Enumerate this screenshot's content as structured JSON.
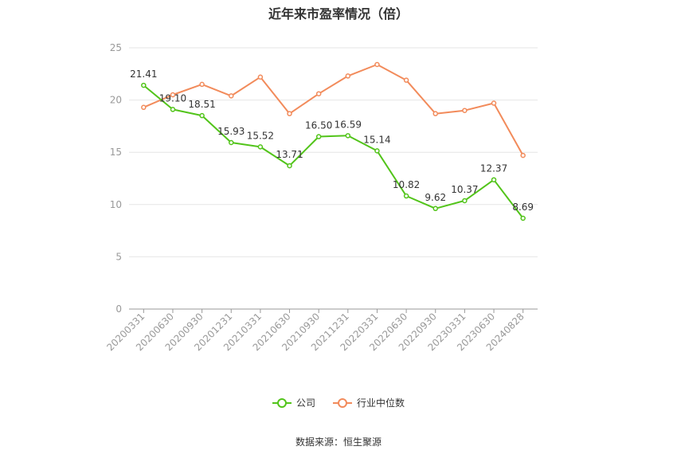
{
  "title": "近年来市盈率情况（倍）",
  "source": "数据来源：恒生聚源",
  "chart_data": {
    "type": "line",
    "categories": [
      "20200331",
      "20200630",
      "20200930",
      "20201231",
      "20210331",
      "20210630",
      "20210930",
      "20211231",
      "20220331",
      "20220630",
      "20220930",
      "20230331",
      "20230630",
      "20240828"
    ],
    "ylim": [
      0,
      25
    ],
    "yticks": [
      0,
      5,
      10,
      15,
      20,
      25
    ],
    "grid": true,
    "legend_position": "bottom",
    "series": [
      {
        "name": "公司",
        "color": "#52c41a",
        "values": [
          21.41,
          19.1,
          18.51,
          15.93,
          15.52,
          13.71,
          16.5,
          16.59,
          15.14,
          10.82,
          9.62,
          10.37,
          12.37,
          8.69
        ],
        "labels": [
          "21.41",
          "19.10",
          "18.51",
          "15.93",
          "15.52",
          "13.71",
          "16.50",
          "16.59",
          "15.14",
          "10.82",
          "9.62",
          "10.37",
          "12.37",
          "8.69"
        ]
      },
      {
        "name": "行业中位数",
        "color": "#f28b5b",
        "values": [
          19.3,
          20.5,
          21.5,
          20.4,
          22.2,
          18.7,
          20.6,
          22.3,
          23.4,
          21.9,
          18.7,
          19.0,
          19.7,
          14.7
        ]
      }
    ]
  }
}
